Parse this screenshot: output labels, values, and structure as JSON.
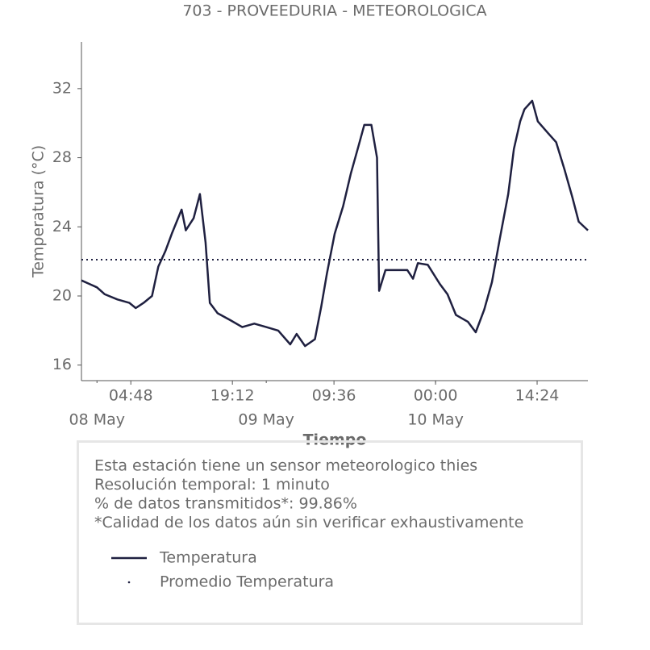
{
  "chart_data": {
    "type": "line",
    "title": "703 - PROVEEDURIA - METEOROLOGICA",
    "x_label": "Tiempo",
    "y_label": "Temperatura (°C)",
    "xlim": [
      "07 May 21:48",
      "10 May 21:36"
    ],
    "ylim": [
      15.1,
      34.7
    ],
    "yticks": [
      16,
      20,
      24,
      28,
      32
    ],
    "xticks": [
      {
        "value": "08 May 04:48",
        "label": "04:48"
      },
      {
        "value": "08 May 19:12",
        "label": "19:12"
      },
      {
        "value": "09 May 09:36",
        "label": "09:36"
      },
      {
        "value": "10 May 00:00",
        "label": "00:00"
      },
      {
        "value": "10 May 14:24",
        "label": "14:24"
      }
    ],
    "date_ticks": [
      {
        "value": "08 May 00:00",
        "label": "08 May"
      },
      {
        "value": "09 May 00:00",
        "label": "09 May"
      },
      {
        "value": "10 May 00:00",
        "label": "10 May"
      }
    ],
    "series": [
      {
        "name": "Temperatura",
        "color": "#1f2040",
        "style": "solid",
        "x": [
          "07 May 21:48",
          "07 May 22:54",
          "08 May 00:00",
          "08 May 01:06",
          "08 May 02:54",
          "08 May 04:36",
          "08 May 05:30",
          "08 May 06:36",
          "08 May 07:48",
          "08 May 08:42",
          "08 May 09:42",
          "08 May 10:36",
          "08 May 12:00",
          "08 May 12:36",
          "08 May 13:42",
          "08 May 14:36",
          "08 May 15:24",
          "08 May 16:00",
          "08 May 17:06",
          "08 May 18:54",
          "08 May 20:36",
          "08 May 22:18",
          "09 May 00:00",
          "09 May 01:42",
          "09 May 03:24",
          "09 May 04:18",
          "09 May 05:30",
          "09 May 06:54",
          "09 May 07:48",
          "09 May 08:36",
          "09 May 09:42",
          "09 May 10:54",
          "09 May 12:00",
          "09 May 13:06",
          "09 May 13:54",
          "09 May 14:54",
          "09 May 15:42",
          "09 May 16:00",
          "09 May 16:54",
          "09 May 18:18",
          "09 May 20:00",
          "09 May 20:48",
          "09 May 21:30",
          "09 May 22:54",
          "10 May 00:36",
          "10 May 01:42",
          "10 May 02:54",
          "10 May 04:36",
          "10 May 05:42",
          "10 May 06:54",
          "10 May 08:00",
          "10 May 09:06",
          "10 May 10:18",
          "10 May 11:06",
          "10 May 12:00",
          "10 May 12:36",
          "10 May 13:42",
          "10 May 14:30",
          "10 May 16:00",
          "10 May 17:06",
          "10 May 18:18",
          "10 May 19:24",
          "10 May 20:18",
          "10 May 21:36"
        ],
        "values": [
          20.9,
          20.7,
          20.5,
          20.1,
          19.8,
          19.6,
          19.3,
          19.6,
          20.0,
          21.7,
          22.6,
          23.6,
          25.0,
          23.8,
          24.5,
          25.9,
          23.1,
          19.6,
          19.0,
          18.6,
          18.2,
          18.4,
          18.2,
          18.0,
          17.2,
          17.8,
          17.1,
          17.5,
          19.4,
          21.3,
          23.6,
          25.2,
          27.1,
          28.7,
          29.9,
          29.9,
          28.0,
          20.3,
          21.5,
          21.5,
          21.5,
          21.0,
          21.9,
          21.8,
          20.7,
          20.1,
          18.9,
          18.5,
          17.9,
          19.2,
          20.8,
          23.3,
          25.9,
          28.5,
          30.1,
          30.8,
          31.3,
          30.1,
          29.4,
          28.9,
          27.3,
          25.7,
          24.3,
          23.8
        ]
      },
      {
        "name": "Promedio Temperatura",
        "color": "#1f2040",
        "style": "dotted",
        "x": [
          "07 May 21:48",
          "10 May 21:36"
        ],
        "values": [
          22.1,
          22.1
        ]
      }
    ],
    "info": [
      "Esta estación tiene un sensor meteorologico thies",
      "Resolución temporal: 1 minuto",
      "% de datos transmitidos*: 99.86%",
      "*Calidad de los datos aún sin verificar exhaustivamente"
    ]
  }
}
